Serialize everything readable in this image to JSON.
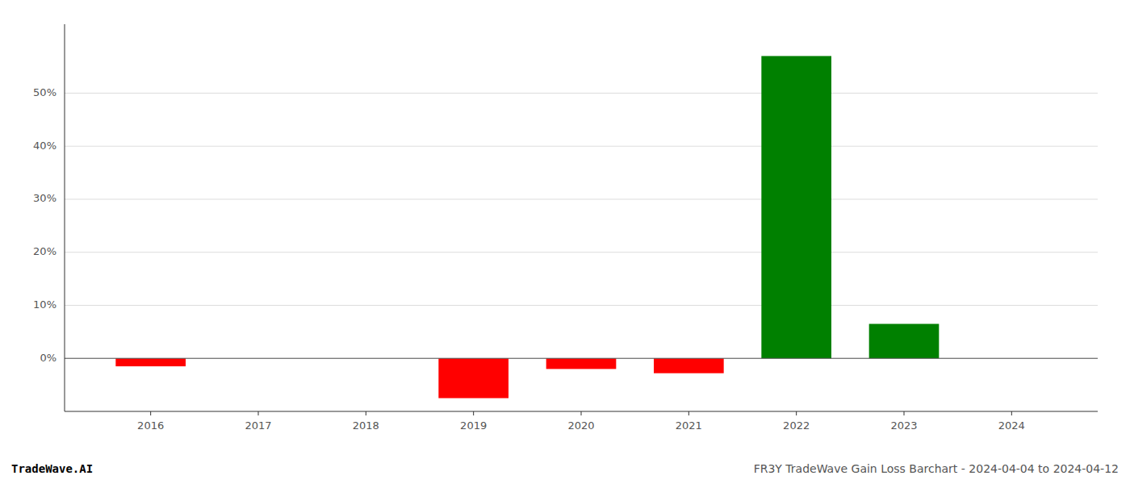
{
  "chart_data": {
    "type": "bar",
    "title": "FR3Y TradeWave Gain Loss Barchart - 2024-04-04 to 2024-04-12",
    "annotations": [
      "TradeWave.AI"
    ],
    "x": [
      2016,
      2017,
      2018,
      2019,
      2020,
      2021,
      2022,
      2023,
      2024
    ],
    "values": [
      -0.015,
      0.0,
      0.0,
      -0.075,
      -0.02,
      -0.028,
      0.57,
      0.065,
      0.0
    ],
    "colors": [
      "#ff0000",
      "#ffffff",
      "#ffffff",
      "#ff0000",
      "#ff0000",
      "#ff0000",
      "#008000",
      "#008000",
      "#ffffff"
    ],
    "xlim": [
      2015.2,
      2024.8
    ],
    "xticks": [
      2016,
      2017,
      2018,
      2019,
      2020,
      2021,
      2022,
      2023,
      2024
    ],
    "ylim": [
      -0.1,
      0.63
    ],
    "yticks": [
      {
        "value": 0.0,
        "label": "0%"
      },
      {
        "value": 0.1,
        "label": "10%"
      },
      {
        "value": 0.2,
        "label": "20%"
      },
      {
        "value": 0.3,
        "label": "30%"
      },
      {
        "value": 0.4,
        "label": "40%"
      },
      {
        "value": 0.5,
        "label": "50%"
      }
    ],
    "grid": true
  }
}
